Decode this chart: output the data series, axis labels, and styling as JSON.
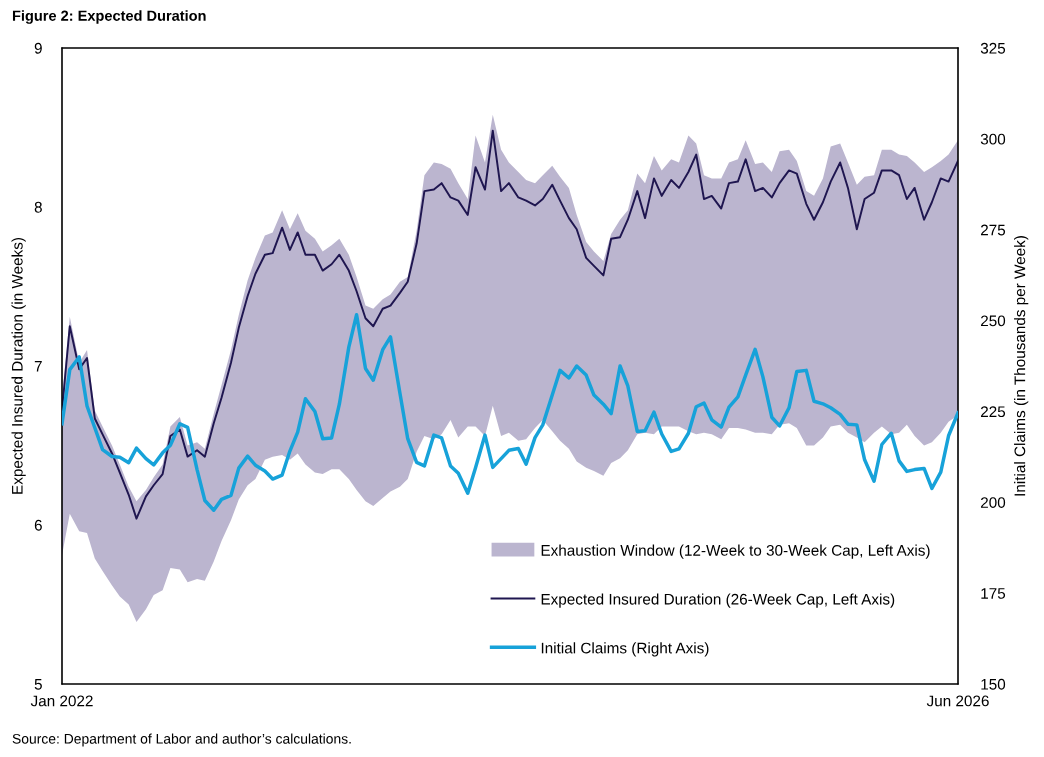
{
  "chart_data": {
    "type": "line",
    "title": "Figure 2: Expected Duration",
    "ylabel": "Expected Insured Duration (in Weeks)",
    "y2label": "Initial Claims (in Thousands per Week)",
    "annotations": [
      "Source: Department of Labor and author’s calculations."
    ],
    "x": [
      "2022-01-01",
      "2022-01-15",
      "2022-02-01",
      "2022-02-15",
      "2022-03-01",
      "2022-03-15",
      "2022-04-01",
      "2022-04-15",
      "2022-05-01",
      "2022-05-15",
      "2022-06-01",
      "2022-06-15",
      "2022-07-01",
      "2022-07-15",
      "2022-08-01",
      "2022-08-15",
      "2022-09-01",
      "2022-09-15",
      "2022-10-01",
      "2022-10-15",
      "2022-11-01",
      "2022-11-15",
      "2022-12-01",
      "2022-12-15",
      "2023-01-01",
      "2023-01-15",
      "2023-02-01",
      "2023-02-15",
      "2023-03-01",
      "2023-03-15",
      "2023-04-01",
      "2023-04-15",
      "2023-05-01",
      "2023-05-15",
      "2023-06-01",
      "2023-06-15",
      "2023-07-01",
      "2023-07-15",
      "2023-08-01",
      "2023-08-15",
      "2023-09-01",
      "2023-09-15",
      "2023-10-01",
      "2023-10-15",
      "2023-11-01",
      "2023-11-15",
      "2023-12-01",
      "2023-12-15",
      "2024-01-01",
      "2024-01-15",
      "2024-02-01",
      "2024-02-15",
      "2024-03-01",
      "2024-03-15",
      "2024-04-01",
      "2024-04-15",
      "2024-05-01",
      "2024-05-15",
      "2024-06-01",
      "2024-06-15",
      "2024-07-01",
      "2024-07-15",
      "2024-08-01",
      "2024-08-15",
      "2024-09-01",
      "2024-09-15",
      "2024-10-01",
      "2024-10-15",
      "2024-11-01",
      "2024-11-15",
      "2024-12-01",
      "2024-12-15",
      "2025-01-01",
      "2025-01-15",
      "2025-02-01",
      "2025-02-15",
      "2025-03-01",
      "2025-03-15",
      "2025-04-01",
      "2025-04-15",
      "2025-05-01",
      "2025-05-15",
      "2025-06-01",
      "2025-06-15",
      "2025-07-01",
      "2025-07-15",
      "2025-08-01",
      "2025-08-15",
      "2025-09-01",
      "2025-09-15",
      "2025-10-01",
      "2025-10-15",
      "2025-11-01",
      "2025-11-15",
      "2025-12-01",
      "2025-12-15",
      "2026-01-01",
      "2026-01-15",
      "2026-02-01",
      "2026-02-15",
      "2026-03-01",
      "2026-03-15",
      "2026-04-01",
      "2026-04-15",
      "2026-05-01",
      "2026-05-15",
      "2026-06-01"
    ],
    "series": [
      {
        "name": "Exhaustion Window (12-Week to 30-Week Cap, Left Axis)",
        "type": "area",
        "color": "#bbb5cf",
        "values": [
          null,
          null,
          null,
          null,
          null,
          null,
          null,
          null,
          null,
          null,
          null,
          null,
          null,
          null,
          null,
          null,
          null,
          null,
          null,
          null,
          null,
          null,
          null,
          null,
          null,
          null,
          null,
          null,
          null,
          null,
          null,
          null,
          null,
          null,
          null,
          null,
          null,
          null,
          null,
          null,
          null,
          null,
          null,
          null,
          null,
          null,
          null,
          null,
          null,
          null,
          null,
          null,
          null,
          null,
          null,
          null,
          null,
          null,
          null,
          null,
          null,
          null,
          null,
          null,
          null,
          null,
          null,
          null,
          null,
          null,
          null,
          null,
          null,
          null,
          null,
          null,
          null,
          null,
          null,
          null,
          null,
          null,
          null,
          null,
          null,
          null,
          null,
          null,
          null,
          null,
          null,
          null,
          null,
          null,
          null,
          null,
          null,
          null,
          null,
          null,
          null,
          null,
          null,
          null,
          null,
          null,
          null
        ],
        "lower": [
          5.81,
          6.07,
          5.96,
          5.95,
          5.79,
          5.71,
          5.62,
          5.55,
          5.5,
          5.39,
          5.47,
          5.56,
          5.59,
          5.73,
          5.72,
          5.64,
          5.66,
          5.65,
          5.77,
          5.9,
          6.03,
          6.16,
          6.25,
          6.29,
          6.41,
          6.43,
          6.44,
          6.41,
          6.45,
          6.38,
          6.33,
          6.32,
          6.35,
          6.35,
          6.29,
          6.22,
          6.15,
          6.12,
          6.17,
          6.21,
          6.24,
          6.29,
          6.46,
          6.56,
          6.54,
          6.57,
          6.66,
          6.55,
          6.62,
          6.62,
          6.56,
          6.75,
          6.56,
          6.58,
          6.53,
          6.54,
          6.61,
          6.66,
          6.59,
          6.53,
          6.48,
          6.4,
          6.36,
          6.34,
          6.31,
          6.39,
          6.42,
          6.47,
          6.57,
          6.58,
          6.57,
          6.62,
          6.62,
          6.62,
          6.59,
          6.57,
          6.58,
          6.57,
          6.54,
          6.61,
          6.61,
          6.6,
          6.58,
          6.58,
          6.57,
          6.63,
          6.64,
          6.61,
          6.5,
          6.5,
          6.55,
          6.62,
          6.63,
          6.58,
          6.55,
          6.52,
          6.58,
          6.62,
          6.57,
          6.58,
          6.63,
          6.56,
          6.5,
          6.52,
          6.58,
          6.65,
          6.69
        ],
        "upper": [
          6.8,
          7.31,
          7.02,
          7.1,
          6.72,
          6.62,
          6.5,
          6.38,
          6.24,
          6.15,
          6.22,
          6.3,
          6.38,
          6.62,
          6.68,
          6.5,
          6.52,
          6.48,
          6.7,
          6.88,
          7.1,
          7.32,
          7.54,
          7.68,
          7.82,
          7.84,
          7.98,
          7.86,
          7.96,
          7.85,
          7.8,
          7.72,
          7.76,
          7.8,
          7.7,
          7.56,
          7.38,
          7.36,
          7.42,
          7.45,
          7.53,
          7.56,
          7.85,
          8.2,
          8.28,
          8.27,
          8.24,
          8.15,
          8.05,
          8.45,
          8.28,
          8.58,
          8.36,
          8.28,
          8.22,
          8.17,
          8.15,
          8.2,
          8.26,
          8.19,
          8.12,
          7.95,
          7.78,
          7.72,
          7.66,
          7.83,
          7.92,
          7.98,
          8.21,
          8.15,
          8.32,
          8.23,
          8.3,
          8.28,
          8.45,
          8.4,
          8.2,
          8.18,
          8.18,
          8.28,
          8.3,
          8.42,
          8.27,
          8.28,
          8.22,
          8.35,
          8.36,
          8.29,
          8.1,
          8.07,
          8.18,
          8.38,
          8.4,
          8.28,
          8.14,
          8.19,
          8.2,
          8.36,
          8.36,
          8.33,
          8.32,
          8.28,
          8.22,
          8.25,
          8.29,
          8.33,
          8.42
        ]
      },
      {
        "name": "Expected Insured Duration (26-Week Cap, Left Axis)",
        "color": "#1f1650",
        "values": [
          6.72,
          7.25,
          6.98,
          7.05,
          6.67,
          6.57,
          6.45,
          6.33,
          6.19,
          6.04,
          6.18,
          6.25,
          6.32,
          6.56,
          6.6,
          6.43,
          6.47,
          6.43,
          6.64,
          6.8,
          7.02,
          7.24,
          7.44,
          7.58,
          7.7,
          7.71,
          7.87,
          7.73,
          7.84,
          7.7,
          7.7,
          7.6,
          7.64,
          7.7,
          7.6,
          7.47,
          7.3,
          7.25,
          7.36,
          7.38,
          7.46,
          7.53,
          7.77,
          8.1,
          8.11,
          8.15,
          8.06,
          8.04,
          7.95,
          8.25,
          8.11,
          8.48,
          8.1,
          8.15,
          8.06,
          8.04,
          8.01,
          8.05,
          8.14,
          8.04,
          7.93,
          7.86,
          7.68,
          7.63,
          7.57,
          7.8,
          7.81,
          7.92,
          8.1,
          7.93,
          8.18,
          8.07,
          8.17,
          8.12,
          8.22,
          8.33,
          8.05,
          8.07,
          7.99,
          8.15,
          8.16,
          8.3,
          8.1,
          8.12,
          8.06,
          8.15,
          8.23,
          8.21,
          8.02,
          7.92,
          8.03,
          8.16,
          8.28,
          8.12,
          7.86,
          8.05,
          8.09,
          8.23,
          8.23,
          8.2,
          8.05,
          8.12,
          7.92,
          8.03,
          8.18,
          8.16,
          8.29
        ]
      },
      {
        "name": "Initial Claims (Right Axis)",
        "color": "#17a2d9",
        "axis": "y2",
        "values": [
          221.6,
          236.5,
          240.0,
          226.5,
          220.5,
          214.5,
          212.6,
          212.4,
          210.9,
          214.9,
          212.0,
          210.3,
          213.6,
          215.7,
          221.6,
          220.6,
          209.0,
          200.5,
          197.8,
          200.8,
          201.9,
          209.4,
          212.7,
          210.2,
          208.6,
          206.4,
          207.5,
          214.1,
          219.3,
          228.5,
          225.0,
          217.5,
          217.7,
          227.0,
          242.7,
          251.6,
          236.8,
          233.6,
          242.0,
          245.5,
          230.0,
          217.5,
          211.0,
          210.0,
          218.5,
          217.7,
          210.0,
          208.0,
          202.5,
          209.5,
          218.5,
          209.6,
          212.0,
          214.3,
          214.8,
          210.5,
          217.8,
          221.3,
          229.5,
          236.3,
          234.2,
          237.5,
          235.0,
          229.5,
          227.0,
          224.4,
          237.5,
          232.0,
          219.5,
          219.7,
          224.8,
          218.8,
          214.0,
          214.7,
          219.0,
          226.3,
          227.3,
          222.7,
          220.7,
          226.2,
          229.0,
          235.0,
          242.1,
          234.5,
          223.4,
          221.0,
          226.0,
          236.0,
          236.3,
          227.8,
          227.1,
          226.0,
          224.2,
          221.5,
          221.3,
          211.7,
          205.8,
          215.9,
          219.0,
          211.4,
          208.5,
          209.0,
          209.3,
          203.8,
          208.3,
          218.3,
          224.6
        ]
      }
    ],
    "xlim": [
      "2022-01-01",
      "2026-06-01"
    ],
    "xticks": [
      {
        "value": "2022-01-01",
        "label": "Jan 2022"
      },
      {
        "value": "2026-06-01",
        "label": "Jun 2026"
      }
    ],
    "ylim": [
      5,
      9
    ],
    "yticks": [
      5,
      6,
      7,
      8,
      9
    ],
    "y2lim": [
      150,
      325
    ],
    "y2ticks": [
      150,
      175,
      200,
      225,
      250,
      275,
      300,
      325
    ],
    "legend": "bottom right"
  }
}
